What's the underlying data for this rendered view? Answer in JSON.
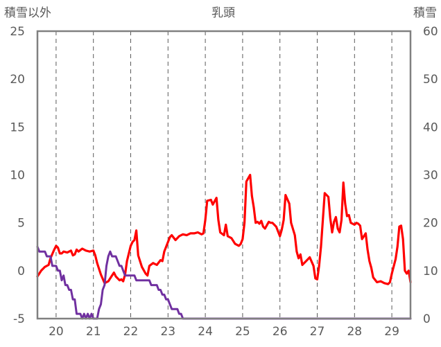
{
  "chart_data": {
    "type": "line",
    "title": "乳頭",
    "ylabel_left": "積雪以外",
    "ylabel_right": "積雪",
    "ylim_left": [
      -5,
      25
    ],
    "ylim_right": [
      0,
      60
    ],
    "yticks_left": [
      "25",
      "20",
      "15",
      "10",
      "5",
      "0",
      "-5"
    ],
    "yticks_right": [
      "60",
      "50",
      "40",
      "30",
      "20",
      "10",
      "0"
    ],
    "xlim": [
      19.5,
      29.5
    ],
    "xticks": [
      "20",
      "21",
      "22",
      "23",
      "24",
      "25",
      "26",
      "27",
      "28",
      "29"
    ],
    "grid": "dashed vertical",
    "colors": {
      "red": "#ff0000",
      "purple": "#7030a0",
      "frame": "#808080",
      "text": "#595959",
      "grid": "#595959"
    },
    "series": [
      {
        "axis": "left",
        "color": "#ff0000",
        "points": [
          [
            19.5,
            -0.6
          ],
          [
            19.6,
            0.0
          ],
          [
            19.7,
            0.4
          ],
          [
            19.8,
            0.6
          ],
          [
            19.85,
            1.3
          ],
          [
            19.95,
            2.2
          ],
          [
            20.0,
            2.6
          ],
          [
            20.05,
            2.4
          ],
          [
            20.1,
            1.8
          ],
          [
            20.15,
            1.8
          ],
          [
            20.2,
            2.0
          ],
          [
            20.3,
            1.9
          ],
          [
            20.4,
            2.1
          ],
          [
            20.45,
            1.6
          ],
          [
            20.5,
            1.7
          ],
          [
            20.55,
            2.2
          ],
          [
            20.6,
            2.0
          ],
          [
            20.7,
            2.3
          ],
          [
            20.8,
            2.1
          ],
          [
            20.9,
            2.0
          ],
          [
            21.0,
            2.1
          ],
          [
            21.05,
            1.6
          ],
          [
            21.1,
            0.8
          ],
          [
            21.2,
            -0.4
          ],
          [
            21.3,
            -1.3
          ],
          [
            21.4,
            -1.1
          ],
          [
            21.5,
            -0.5
          ],
          [
            21.55,
            -0.2
          ],
          [
            21.6,
            -0.6
          ],
          [
            21.7,
            -1.0
          ],
          [
            21.75,
            -0.9
          ],
          [
            21.8,
            -1.1
          ],
          [
            21.85,
            -0.4
          ],
          [
            21.9,
            1.0
          ],
          [
            22.0,
            2.6
          ],
          [
            22.05,
            3.0
          ],
          [
            22.1,
            3.2
          ],
          [
            22.15,
            4.2
          ],
          [
            22.2,
            1.6
          ],
          [
            22.3,
            0.4
          ],
          [
            22.4,
            -0.3
          ],
          [
            22.45,
            -0.5
          ],
          [
            22.5,
            0.5
          ],
          [
            22.6,
            0.8
          ],
          [
            22.7,
            0.6
          ],
          [
            22.8,
            1.1
          ],
          [
            22.85,
            1.0
          ],
          [
            22.9,
            2.0
          ],
          [
            23.0,
            3.0
          ],
          [
            23.05,
            3.5
          ],
          [
            23.1,
            3.7
          ],
          [
            23.2,
            3.2
          ],
          [
            23.3,
            3.6
          ],
          [
            23.4,
            3.8
          ],
          [
            23.5,
            3.7
          ],
          [
            23.6,
            3.9
          ],
          [
            23.7,
            3.9
          ],
          [
            23.8,
            4.0
          ],
          [
            23.9,
            3.8
          ],
          [
            23.95,
            3.9
          ],
          [
            24.0,
            5.3
          ],
          [
            24.05,
            7.3
          ],
          [
            24.15,
            7.4
          ],
          [
            24.2,
            6.9
          ],
          [
            24.3,
            7.6
          ],
          [
            24.35,
            5.3
          ],
          [
            24.4,
            4.0
          ],
          [
            24.5,
            3.7
          ],
          [
            24.55,
            4.8
          ],
          [
            24.6,
            3.6
          ],
          [
            24.7,
            3.4
          ],
          [
            24.8,
            2.8
          ],
          [
            24.9,
            2.6
          ],
          [
            24.95,
            2.8
          ],
          [
            25.0,
            3.3
          ],
          [
            25.05,
            5.0
          ],
          [
            25.1,
            9.3
          ],
          [
            25.2,
            10.0
          ],
          [
            25.25,
            7.8
          ],
          [
            25.3,
            6.6
          ],
          [
            25.35,
            5.0
          ],
          [
            25.4,
            5.1
          ],
          [
            25.45,
            4.9
          ],
          [
            25.5,
            5.2
          ],
          [
            25.55,
            4.6
          ],
          [
            25.6,
            4.4
          ],
          [
            25.7,
            5.1
          ],
          [
            25.75,
            5.0
          ],
          [
            25.8,
            5.0
          ],
          [
            25.9,
            4.6
          ],
          [
            26.0,
            3.6
          ],
          [
            26.05,
            4.3
          ],
          [
            26.1,
            5.3
          ],
          [
            26.15,
            7.9
          ],
          [
            26.25,
            7.0
          ],
          [
            26.3,
            5.0
          ],
          [
            26.4,
            3.7
          ],
          [
            26.45,
            2.0
          ],
          [
            26.5,
            1.3
          ],
          [
            26.55,
            1.7
          ],
          [
            26.6,
            0.6
          ],
          [
            26.7,
            1.0
          ],
          [
            26.8,
            1.4
          ],
          [
            26.9,
            0.5
          ],
          [
            26.95,
            -0.8
          ],
          [
            27.0,
            -0.9
          ],
          [
            27.05,
            0.5
          ],
          [
            27.1,
            2.5
          ],
          [
            27.2,
            8.1
          ],
          [
            27.3,
            7.7
          ],
          [
            27.35,
            5.5
          ],
          [
            27.4,
            4.0
          ],
          [
            27.45,
            5.1
          ],
          [
            27.5,
            5.6
          ],
          [
            27.55,
            4.4
          ],
          [
            27.6,
            4.0
          ],
          [
            27.65,
            5.3
          ],
          [
            27.7,
            9.2
          ],
          [
            27.75,
            7.0
          ],
          [
            27.8,
            5.7
          ],
          [
            27.85,
            5.8
          ],
          [
            27.9,
            5.0
          ],
          [
            28.0,
            4.8
          ],
          [
            28.05,
            5.0
          ],
          [
            28.1,
            4.9
          ],
          [
            28.15,
            4.7
          ],
          [
            28.2,
            3.3
          ],
          [
            28.25,
            3.6
          ],
          [
            28.3,
            3.9
          ],
          [
            28.35,
            2.2
          ],
          [
            28.4,
            1.0
          ],
          [
            28.45,
            0.3
          ],
          [
            28.5,
            -0.7
          ],
          [
            28.6,
            -1.2
          ],
          [
            28.7,
            -1.1
          ],
          [
            28.8,
            -1.3
          ],
          [
            28.9,
            -1.4
          ],
          [
            28.95,
            -1.2
          ],
          [
            29.0,
            -0.3
          ],
          [
            29.1,
            1.2
          ],
          [
            29.15,
            2.5
          ],
          [
            29.2,
            4.6
          ],
          [
            29.25,
            4.7
          ],
          [
            29.3,
            3.3
          ],
          [
            29.35,
            0.0
          ],
          [
            29.4,
            -0.3
          ],
          [
            29.45,
            0.0
          ],
          [
            29.5,
            -1.2
          ]
        ]
      },
      {
        "axis": "right",
        "color": "#7030a0",
        "points": [
          [
            19.5,
            15
          ],
          [
            19.55,
            14
          ],
          [
            19.6,
            14
          ],
          [
            19.65,
            14
          ],
          [
            19.7,
            14
          ],
          [
            19.75,
            13
          ],
          [
            19.8,
            13
          ],
          [
            19.85,
            13
          ],
          [
            19.9,
            11
          ],
          [
            20.0,
            11
          ],
          [
            20.05,
            10
          ],
          [
            20.1,
            10
          ],
          [
            20.15,
            8
          ],
          [
            20.2,
            9
          ],
          [
            20.25,
            7
          ],
          [
            20.3,
            7
          ],
          [
            20.35,
            6
          ],
          [
            20.4,
            6
          ],
          [
            20.45,
            4
          ],
          [
            20.5,
            4
          ],
          [
            20.55,
            1
          ],
          [
            20.6,
            1
          ],
          [
            20.65,
            1
          ],
          [
            20.7,
            0
          ],
          [
            20.75,
            1
          ],
          [
            20.8,
            0
          ],
          [
            20.85,
            1
          ],
          [
            20.9,
            0
          ],
          [
            20.95,
            1
          ],
          [
            21.0,
            0
          ],
          [
            21.05,
            0
          ],
          [
            21.1,
            0
          ],
          [
            21.15,
            2
          ],
          [
            21.2,
            3
          ],
          [
            21.25,
            6
          ],
          [
            21.3,
            7
          ],
          [
            21.35,
            11
          ],
          [
            21.4,
            13
          ],
          [
            21.45,
            14
          ],
          [
            21.5,
            13
          ],
          [
            21.55,
            13
          ],
          [
            21.6,
            13
          ],
          [
            21.65,
            12
          ],
          [
            21.7,
            11
          ],
          [
            21.75,
            11
          ],
          [
            21.8,
            10
          ],
          [
            21.85,
            9
          ],
          [
            21.9,
            9
          ],
          [
            22.0,
            9
          ],
          [
            22.05,
            9
          ],
          [
            22.1,
            9
          ],
          [
            22.15,
            8
          ],
          [
            22.2,
            8
          ],
          [
            22.3,
            8
          ],
          [
            22.4,
            8
          ],
          [
            22.5,
            8
          ],
          [
            22.55,
            7
          ],
          [
            22.6,
            7
          ],
          [
            22.7,
            7
          ],
          [
            22.75,
            6
          ],
          [
            22.8,
            6
          ],
          [
            22.85,
            5
          ],
          [
            22.9,
            5
          ],
          [
            22.95,
            4
          ],
          [
            23.0,
            4
          ],
          [
            23.05,
            3
          ],
          [
            23.1,
            2
          ],
          [
            23.2,
            2
          ],
          [
            23.25,
            2
          ],
          [
            23.3,
            1
          ],
          [
            23.35,
            1
          ],
          [
            23.4,
            0
          ],
          [
            23.5,
            0
          ],
          [
            24.0,
            0
          ],
          [
            25.0,
            0
          ],
          [
            26.0,
            0
          ],
          [
            27.0,
            0
          ],
          [
            28.0,
            0
          ],
          [
            29.0,
            0
          ],
          [
            29.5,
            0
          ]
        ]
      }
    ]
  }
}
